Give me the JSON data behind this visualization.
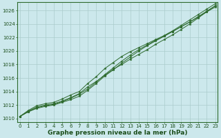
{
  "xlabel": "Graphe pression niveau de la mer (hPa)",
  "x_ticks": [
    0,
    1,
    2,
    3,
    4,
    5,
    6,
    7,
    8,
    9,
    10,
    11,
    12,
    13,
    14,
    15,
    16,
    17,
    18,
    19,
    20,
    21,
    22,
    23
  ],
  "y_ticks": [
    1010,
    1012,
    1014,
    1016,
    1018,
    1020,
    1022,
    1024,
    1026
  ],
  "ylim": [
    1009.5,
    1027.2
  ],
  "xlim": [
    -0.3,
    23.3
  ],
  "bg_color": "#cce8ec",
  "grid_color": "#aacccc",
  "line_color": "#2d6a2d",
  "marker_color": "#2d6a2d",
  "line1": [
    1010.3,
    1011.1,
    1011.7,
    1012.0,
    1012.2,
    1012.6,
    1013.1,
    1013.7,
    1014.7,
    1015.5,
    1016.4,
    1017.3,
    1018.0,
    1018.8,
    1019.5,
    1020.2,
    1021.0,
    1021.7,
    1022.4,
    1023.2,
    1024.0,
    1024.9,
    1025.8,
    1026.7
  ],
  "line2": [
    1010.3,
    1011.2,
    1011.9,
    1012.2,
    1012.4,
    1012.9,
    1013.5,
    1014.0,
    1015.2,
    1016.2,
    1017.4,
    1018.3,
    1019.2,
    1019.9,
    1020.5,
    1021.1,
    1021.7,
    1022.3,
    1023.0,
    1023.8,
    1024.6,
    1025.4,
    1026.2,
    1027.0
  ],
  "line3": [
    1010.3,
    1011.0,
    1011.6,
    1011.9,
    1012.1,
    1012.5,
    1013.0,
    1013.6,
    1014.4,
    1015.4,
    1016.5,
    1017.5,
    1018.5,
    1019.4,
    1020.2,
    1020.9,
    1021.6,
    1022.2,
    1022.9,
    1023.6,
    1024.3,
    1025.1,
    1025.9,
    1026.7
  ],
  "line4": [
    1010.3,
    1011.0,
    1011.5,
    1011.8,
    1012.0,
    1012.4,
    1012.8,
    1013.3,
    1014.2,
    1015.2,
    1016.3,
    1017.2,
    1018.2,
    1019.1,
    1020.0,
    1020.8,
    1021.5,
    1022.2,
    1022.9,
    1023.6,
    1024.3,
    1025.0,
    1025.8,
    1026.5
  ],
  "marker_style": "*",
  "marker_size": 2.5,
  "linewidth": 0.7,
  "font_color": "#1a4d1a",
  "tick_fontsize": 5.0,
  "label_fontsize": 6.5
}
